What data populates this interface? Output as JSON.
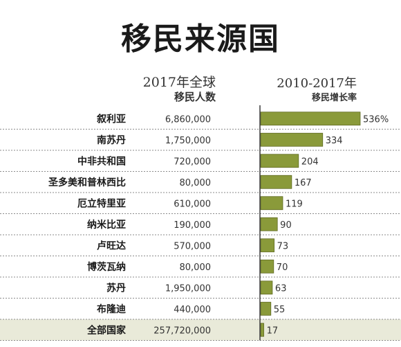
{
  "title": "移民来源国",
  "headers": {
    "population": [
      "2017年全球",
      "移民人数"
    ],
    "growth": [
      "2010-2017年",
      "移民增长率"
    ]
  },
  "colors": {
    "bar": "#8a9a3a",
    "bar_stroke": "#5e6a22",
    "divider": "#3a3a3a",
    "total_bg": "#e9ead9"
  },
  "chart_data": {
    "type": "bar",
    "categories": [
      "叙利亚",
      "南苏丹",
      "中非共和国",
      "圣多美和普林西比",
      "厄立特里亚",
      "纳米比亚",
      "卢旺达",
      "博茨瓦纳",
      "苏丹",
      "布隆迪",
      "全部国家"
    ],
    "population": [
      "6,860,000",
      "1,750,000",
      "720,000",
      "80,000",
      "610,000",
      "190,000",
      "570,000",
      "80,000",
      "1,950,000",
      "440,000",
      "257,720,000"
    ],
    "series": [
      {
        "values": [
          536,
          334,
          204,
          167,
          119,
          90,
          73,
          70,
          63,
          55,
          17
        ]
      }
    ],
    "value_labels": [
      "536%",
      "334",
      "204",
      "167",
      "119",
      "90",
      "73",
      "70",
      "63",
      "55",
      "17"
    ],
    "xlim": [
      0,
      536
    ]
  }
}
